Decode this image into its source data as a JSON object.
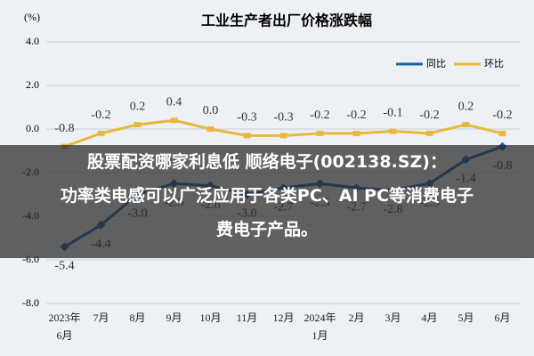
{
  "chart_data": {
    "type": "line",
    "title": "工业生产者出厂价格涨跌幅",
    "y_label": "(%)",
    "categories": [
      "2023年6月",
      "7月",
      "8月",
      "9月",
      "10月",
      "11月",
      "12月",
      "2024年1月",
      "2月",
      "3月",
      "4月",
      "5月",
      "6月"
    ],
    "series": [
      {
        "name": "同比",
        "color": "#1f5fa8",
        "values": [
          -5.4,
          -4.4,
          -3.0,
          -2.5,
          -2.6,
          -3.0,
          -2.7,
          -2.5,
          -2.7,
          -2.8,
          -2.5,
          -1.4,
          -0.8
        ],
        "value_labels": [
          "-5.4",
          "-4.4",
          "-3.0",
          "-2.5",
          "-2.6",
          "-3.0",
          "-2.7",
          "-2.5",
          "-2.7",
          "-2.8",
          "-2.5",
          "-1.4",
          "-0.8"
        ]
      },
      {
        "name": "环比",
        "color": "#e8b83a",
        "values": [
          -0.8,
          -0.2,
          0.2,
          0.4,
          0.0,
          -0.3,
          -0.3,
          -0.2,
          -0.2,
          -0.1,
          -0.2,
          0.2,
          -0.2
        ],
        "value_labels": [
          "-0.8",
          "-0.2",
          "0.2",
          "0.4",
          "0.0",
          "-0.3",
          "-0.3",
          "-0.2",
          "-0.2",
          "-0.1",
          "-0.2",
          "0.2",
          "-0.2"
        ]
      }
    ],
    "ylim": [
      -8,
      4
    ],
    "yticks": [
      {
        "value": -8,
        "label": "-8.0"
      },
      {
        "value": -6,
        "label": "-6.0"
      },
      {
        "value": -4,
        "label": "-4.0"
      },
      {
        "value": -2,
        "label": "-2.0"
      },
      {
        "value": 0,
        "label": "0.0"
      },
      {
        "value": 2,
        "label": "2.0"
      },
      {
        "value": 4,
        "label": "4.0"
      }
    ],
    "grid": true,
    "legend": "upper right"
  },
  "overlay": {
    "lines": [
      "股票配资哪家利息低 顺络电子(002138.SZ)：",
      "功率类电感可以广泛应用于各类PC、AI PC等消费电子",
      "费电子产品。"
    ]
  }
}
